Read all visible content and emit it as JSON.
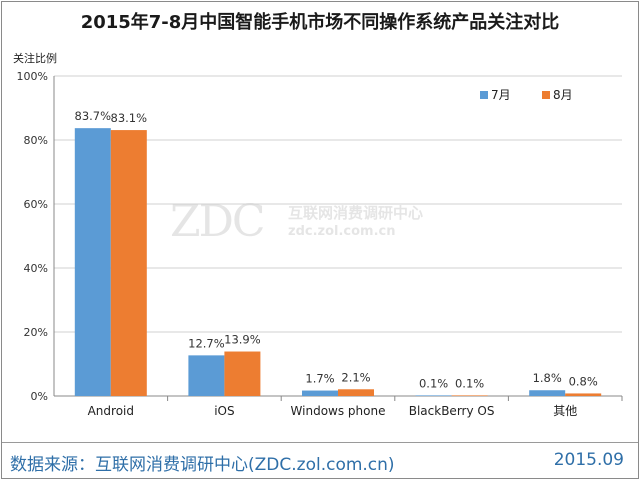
{
  "footer": {
    "source": "数据来源：互联网消费调研中心(ZDC.zol.com.cn)",
    "date": "2015.09"
  },
  "watermark": {
    "logo": "ZDC",
    "cn": "互联网消费调研中心",
    "url": "zdc.zol.com.cn"
  },
  "colors": {
    "series_7": "#5b9bd5",
    "series_8": "#ed7d31",
    "grid": "#d0d0d0"
  },
  "chart_data": {
    "type": "bar",
    "title": "2015年7-8月中国智能手机市场不同操作系统产品关注对比",
    "xlabel": "",
    "ylabel": "关注比例",
    "categories": [
      "Android",
      "iOS",
      "Windows phone",
      "BlackBerry OS",
      "其他"
    ],
    "series": [
      {
        "name": "7月",
        "values": [
          83.7,
          12.7,
          1.7,
          0.1,
          1.8
        ],
        "labels": [
          "83.7%",
          "12.7%",
          "1.7%",
          "0.1%",
          "1.8%"
        ]
      },
      {
        "name": "8月",
        "values": [
          83.1,
          13.9,
          2.1,
          0.1,
          0.8
        ],
        "labels": [
          "83.1%",
          "13.9%",
          "2.1%",
          "0.1%",
          "0.8%"
        ]
      }
    ],
    "ylim": [
      0,
      100
    ],
    "yticks": [
      "0%",
      "20%",
      "40%",
      "60%",
      "80%",
      "100%"
    ],
    "grid": true,
    "legend_position": "top-right"
  }
}
